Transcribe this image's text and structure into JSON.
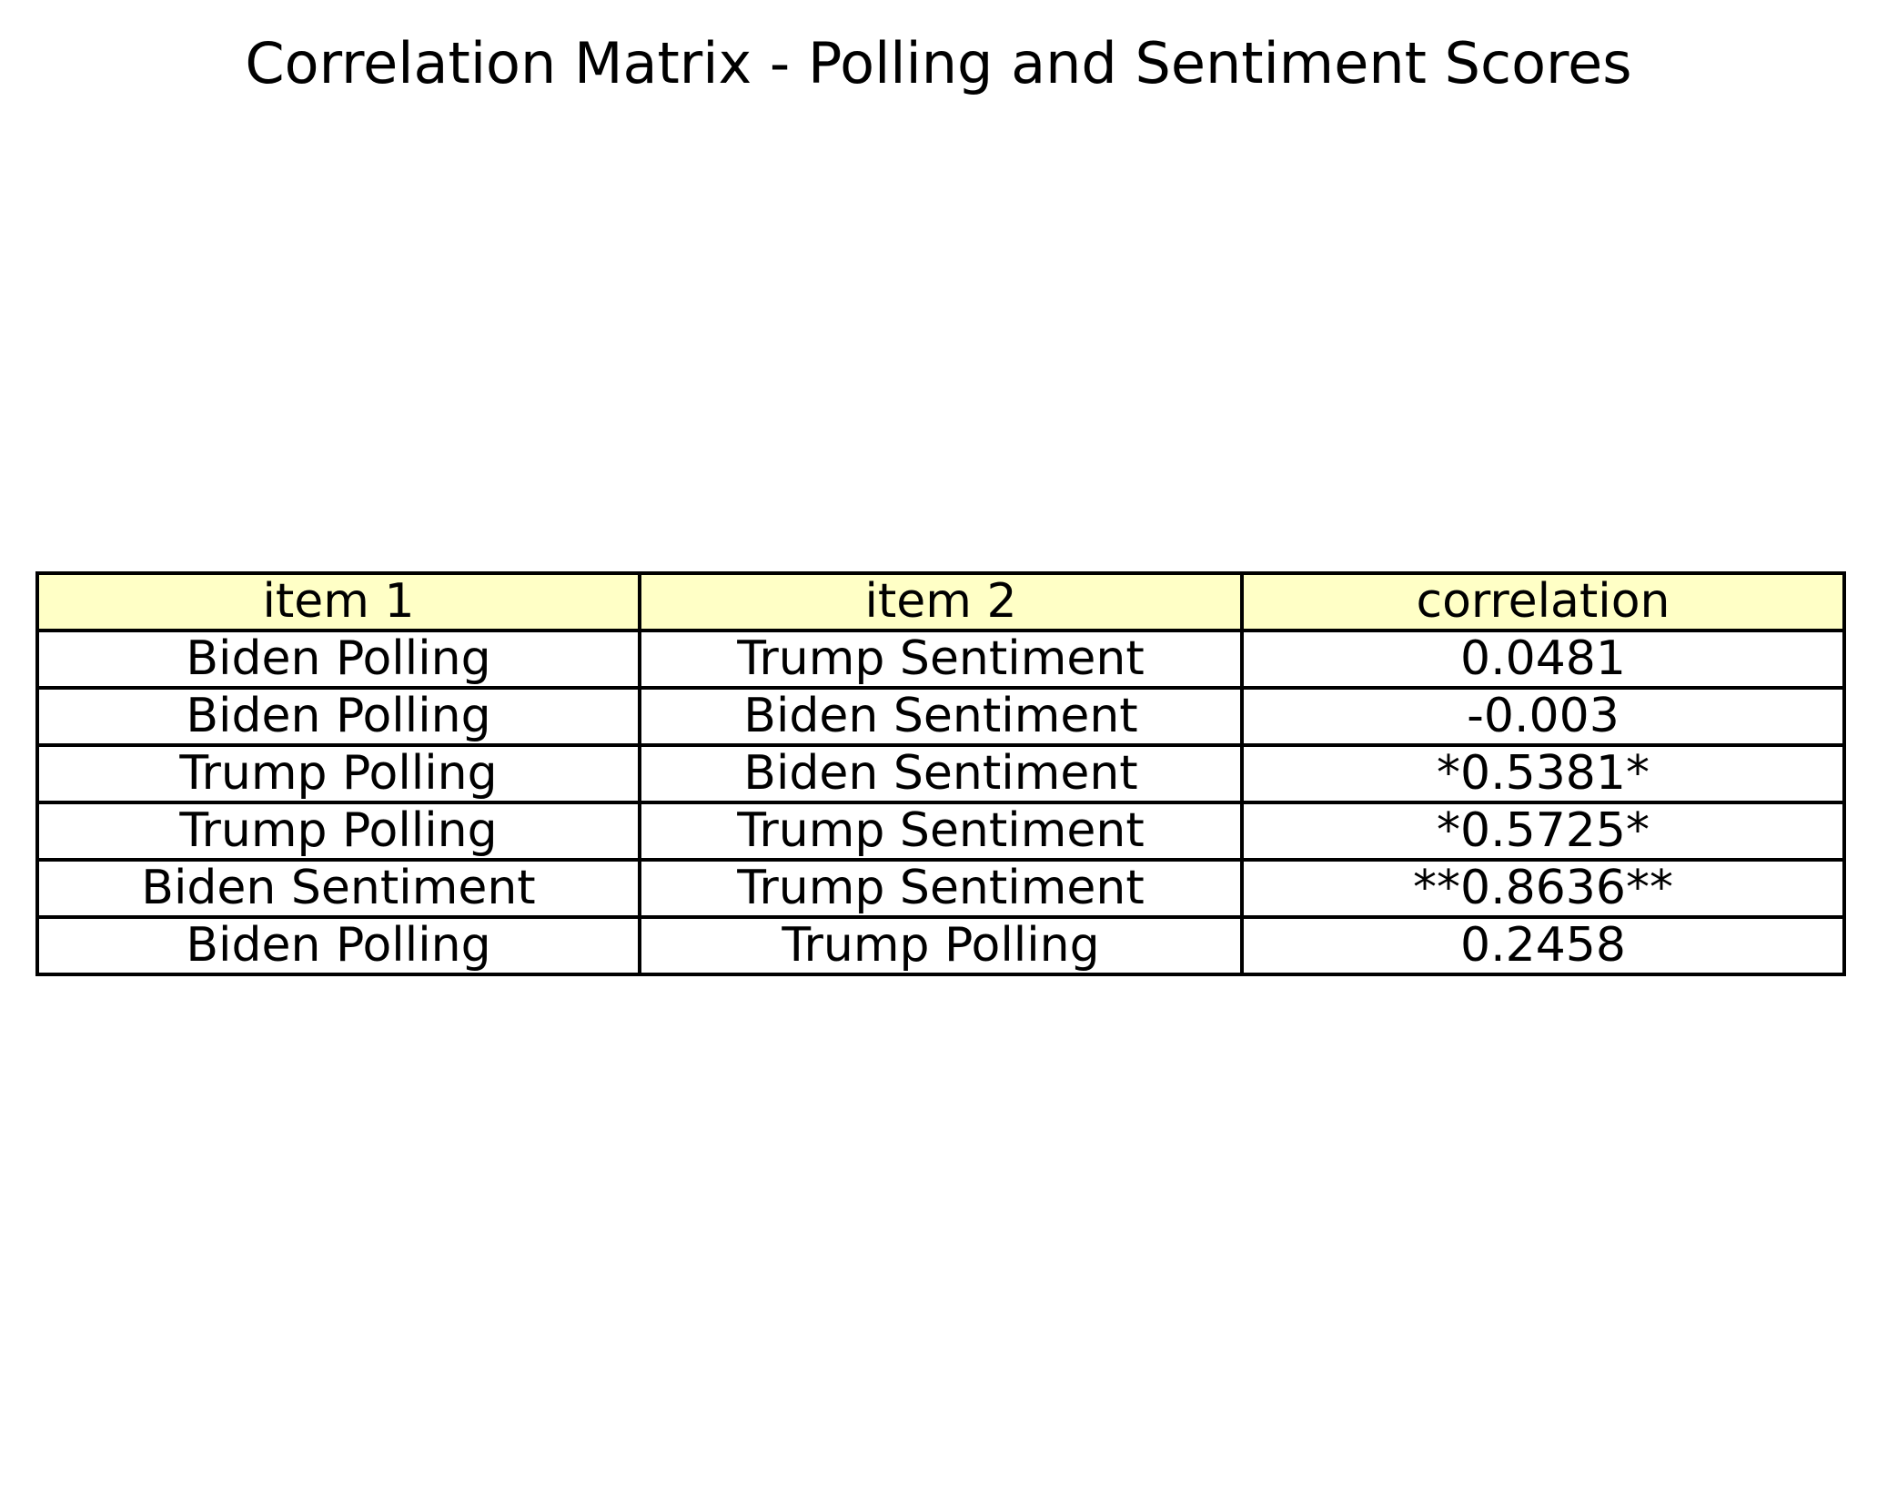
{
  "chart_data": {
    "type": "table",
    "title": "Correlation Matrix - Polling and Sentiment Scores",
    "header_color": "#ffffc6",
    "columns": [
      "item 1",
      "item 2",
      "correlation"
    ],
    "rows": [
      [
        "Biden Polling",
        "Trump Sentiment",
        "0.0481"
      ],
      [
        "Biden Polling",
        "Biden Sentiment",
        "-0.003"
      ],
      [
        "Trump Polling",
        "Biden Sentiment",
        "*0.5381*"
      ],
      [
        "Trump Polling",
        "Trump Sentiment",
        "*0.5725*"
      ],
      [
        "Biden Sentiment",
        "Trump Sentiment",
        "**0.8636**"
      ],
      [
        "Biden Polling",
        "Trump Polling",
        "0.2458"
      ]
    ]
  }
}
